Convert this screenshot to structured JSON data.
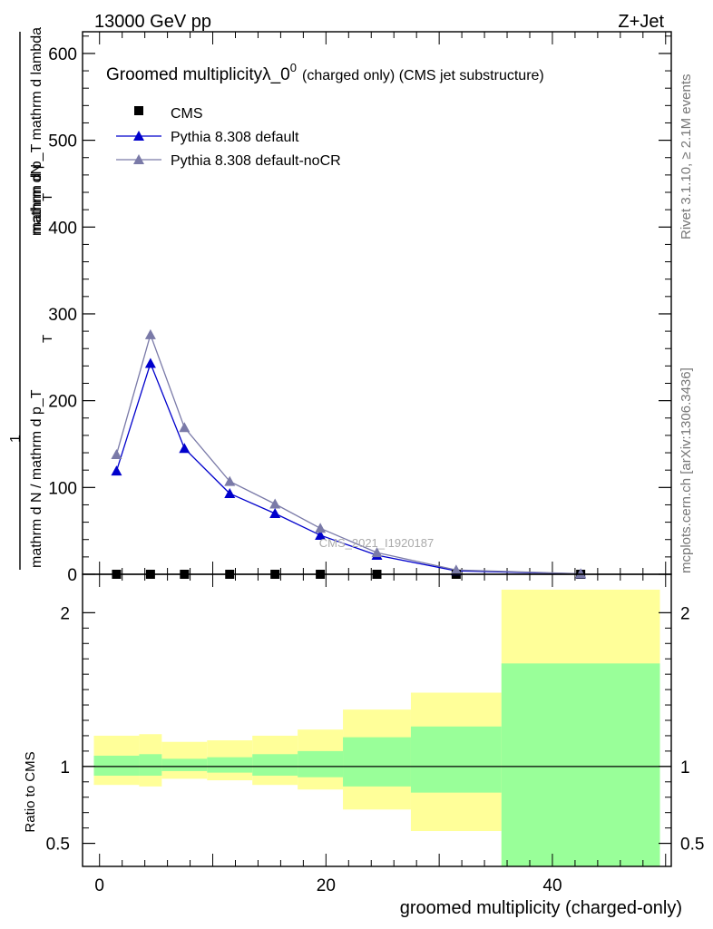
{
  "header": {
    "energy": "13000 GeV pp",
    "process": "Z+Jet"
  },
  "side": {
    "rivet": "Rivet 3.1.10, ≥ 2.1M events",
    "mcplots": "mcplots.cern.ch [arXiv:1306.3436]"
  },
  "chart_data": [
    {
      "type": "line",
      "title": "Groomed multiplicityλ_0",
      "title_sup": "0",
      "title_note": "(charged only) (CMS jet substructure)",
      "watermark": "CMS_2021_I1920187",
      "ylabel_numerator": "mathrm dN",
      "ylabel_fraction": "mathrm d p_T mathrm d lambda",
      "ylabel_fraction_sub": "T",
      "ylabel_prefix": "1",
      "ylabel_denominator": "mathrm d N / mathrm d p_T",
      "ylabel_denominator_sub": "T",
      "ylim": [
        0,
        625
      ],
      "yticks": [
        0,
        100,
        200,
        300,
        400,
        500,
        600
      ],
      "ytick_labels": [
        "0",
        "100",
        "200",
        "300",
        "400",
        "500",
        "600"
      ],
      "xlim": [
        -1.5,
        50.5
      ],
      "legend": [
        "CMS",
        "Pythia 8.308 default",
        "Pythia 8.308 default-noCR"
      ],
      "series": [
        {
          "name": "CMS",
          "color": "#000000",
          "marker": "square",
          "x": [
            1.5,
            4.5,
            7.5,
            11.5,
            15.5,
            19.5,
            24.5,
            31.5,
            42.5
          ],
          "values": [
            0,
            0,
            0,
            0,
            0,
            0,
            0,
            0,
            0
          ]
        },
        {
          "name": "Pythia 8.308 default",
          "color": "#0000cc",
          "marker": "triangle",
          "x": [
            1.5,
            4.5,
            7.5,
            11.5,
            15.5,
            19.5,
            24.5,
            31.5,
            42.5
          ],
          "values": [
            119,
            243,
            145,
            93,
            70,
            45,
            22,
            4,
            0.5
          ]
        },
        {
          "name": "Pythia 8.308 default-noCR",
          "color": "#7a7aa8",
          "marker": "triangle",
          "x": [
            1.5,
            4.5,
            7.5,
            11.5,
            15.5,
            19.5,
            24.5,
            31.5,
            42.5
          ],
          "values": [
            138,
            276,
            169,
            107,
            81,
            53,
            25,
            5,
            0.6
          ]
        }
      ]
    },
    {
      "type": "area",
      "ylabel": "Ratio to CMS",
      "xlabel": "groomed multiplicity (charged-only)",
      "ylim": [
        0.35,
        2.25
      ],
      "yticks": [
        0.5,
        1,
        2
      ],
      "ytick_labels": [
        "0.5",
        "1",
        "2"
      ],
      "xlim": [
        -1.5,
        50.5
      ],
      "xticks": [
        0,
        20,
        40
      ],
      "xtick_labels": [
        "0",
        "20",
        "40"
      ],
      "reference_line": 1,
      "bands": [
        {
          "x": [
            -0.5,
            3.5
          ],
          "stat": [
            0.94,
            1.07
          ],
          "total": [
            0.88,
            1.2
          ]
        },
        {
          "x": [
            3.5,
            5.5
          ],
          "stat": [
            0.94,
            1.08
          ],
          "total": [
            0.87,
            1.21
          ]
        },
        {
          "x": [
            5.5,
            9.5
          ],
          "stat": [
            0.97,
            1.05
          ],
          "total": [
            0.92,
            1.16
          ]
        },
        {
          "x": [
            9.5,
            13.5
          ],
          "stat": [
            0.96,
            1.06
          ],
          "total": [
            0.91,
            1.17
          ]
        },
        {
          "x": [
            13.5,
            17.5
          ],
          "stat": [
            0.94,
            1.08
          ],
          "total": [
            0.88,
            1.2
          ]
        },
        {
          "x": [
            17.5,
            21.5
          ],
          "stat": [
            0.93,
            1.1
          ],
          "total": [
            0.85,
            1.24
          ]
        },
        {
          "x": [
            21.5,
            27.5
          ],
          "stat": [
            0.87,
            1.19
          ],
          "total": [
            0.72,
            1.37
          ]
        },
        {
          "x": [
            27.5,
            35.5
          ],
          "stat": [
            0.83,
            1.26
          ],
          "total": [
            0.58,
            1.48
          ]
        },
        {
          "x": [
            35.5,
            49.5
          ],
          "stat": [
            0.35,
            1.67
          ],
          "total": [
            0.35,
            2.15
          ]
        }
      ],
      "colors": {
        "stat": "#99ff99",
        "total": "#ffff99"
      }
    }
  ]
}
